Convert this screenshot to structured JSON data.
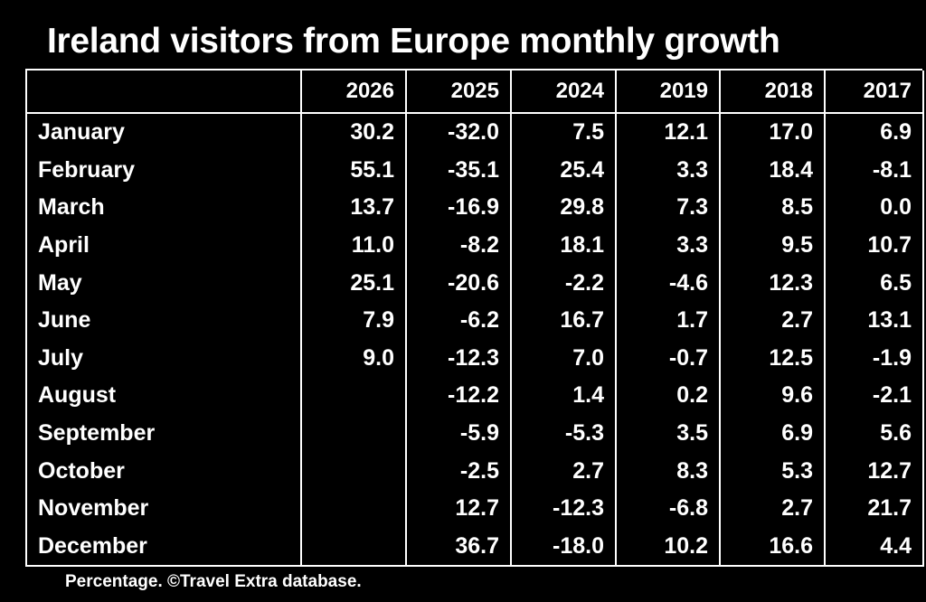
{
  "title": "Ireland visitors from Europe monthly growth",
  "footer": "Percentage. ©Travel Extra database.",
  "table": {
    "headers": [
      "2026",
      "2025",
      "2024",
      "2019",
      "2018",
      "2017"
    ],
    "rows": [
      {
        "month": "January",
        "values": [
          "30.2",
          "-32.0",
          "7.5",
          "12.1",
          "17.0",
          "6.9"
        ]
      },
      {
        "month": "February",
        "values": [
          "55.1",
          "-35.1",
          "25.4",
          "3.3",
          "18.4",
          "-8.1"
        ]
      },
      {
        "month": "March",
        "values": [
          "13.7",
          "-16.9",
          "29.8",
          "7.3",
          "8.5",
          "0.0"
        ]
      },
      {
        "month": "April",
        "values": [
          "11.0",
          "-8.2",
          "18.1",
          "3.3",
          "9.5",
          "10.7"
        ]
      },
      {
        "month": "May",
        "values": [
          "25.1",
          "-20.6",
          "-2.2",
          "-4.6",
          "12.3",
          "6.5"
        ]
      },
      {
        "month": "June",
        "values": [
          "7.9",
          "-6.2",
          "16.7",
          "1.7",
          "2.7",
          "13.1"
        ]
      },
      {
        "month": "July",
        "values": [
          "9.0",
          "-12.3",
          "7.0",
          "-0.7",
          "12.5",
          "-1.9"
        ]
      },
      {
        "month": "August",
        "values": [
          "",
          "-12.2",
          "1.4",
          "0.2",
          "9.6",
          "-2.1"
        ]
      },
      {
        "month": "September",
        "values": [
          "",
          "-5.9",
          "-5.3",
          "3.5",
          "6.9",
          "5.6"
        ]
      },
      {
        "month": "October",
        "values": [
          "",
          "-2.5",
          "2.7",
          "8.3",
          "5.3",
          "12.7"
        ]
      },
      {
        "month": "November",
        "values": [
          "",
          "12.7",
          "-12.3",
          "-6.8",
          "2.7",
          "21.7"
        ]
      },
      {
        "month": "December",
        "values": [
          "",
          "36.7",
          "-18.0",
          "10.2",
          "16.6",
          "4.4"
        ]
      }
    ]
  }
}
